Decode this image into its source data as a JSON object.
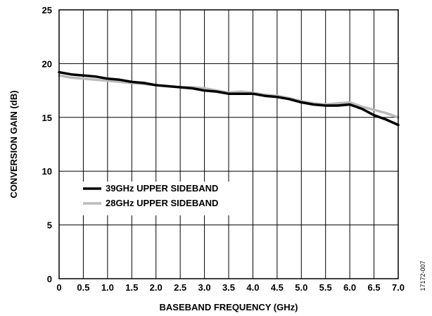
{
  "figure_id": "17172-007",
  "chart_data": {
    "type": "line",
    "title": "",
    "xlabel": "BASEBAND FREQUENCY (GHz)",
    "ylabel": "CONVERSION GAIN (dB)",
    "xlim": [
      0,
      7.0
    ],
    "ylim": [
      0,
      25
    ],
    "x_ticks": [
      0,
      0.5,
      1.0,
      1.5,
      2.0,
      2.5,
      3.0,
      3.5,
      4.0,
      4.5,
      5.0,
      5.5,
      6.0,
      6.5,
      7.0
    ],
    "x_tick_labels": [
      "0",
      "0.5",
      "1.0",
      "1.5",
      "2.0",
      "2.5",
      "3.0",
      "3.5",
      "4.0",
      "4.5",
      "5.0",
      "5.5",
      "6.0",
      "6.5",
      "7.0"
    ],
    "y_ticks": [
      0,
      5,
      10,
      15,
      20,
      25
    ],
    "y_tick_labels": [
      "0",
      "5",
      "10",
      "15",
      "20",
      "25"
    ],
    "grid": true,
    "legend_position": "center-left",
    "x": [
      0,
      0.25,
      0.5,
      0.75,
      1.0,
      1.25,
      1.5,
      1.75,
      2.0,
      2.25,
      2.5,
      2.75,
      3.0,
      3.25,
      3.5,
      3.75,
      4.0,
      4.25,
      4.5,
      4.75,
      5.0,
      5.25,
      5.5,
      5.75,
      6.0,
      6.25,
      6.5,
      6.75,
      7.0
    ],
    "series": [
      {
        "name": "39GHz UPPER SIDEBAND",
        "color": "#000000",
        "values": [
          19.2,
          19.0,
          18.9,
          18.8,
          18.6,
          18.5,
          18.3,
          18.2,
          18.0,
          17.9,
          17.8,
          17.7,
          17.5,
          17.4,
          17.2,
          17.2,
          17.2,
          17.0,
          16.9,
          16.7,
          16.4,
          16.2,
          16.1,
          16.1,
          16.2,
          15.8,
          15.2,
          14.8,
          14.3
        ]
      },
      {
        "name": "28GHz UPPER SIDEBAND",
        "color": "#bbbbbb",
        "values": [
          18.9,
          18.7,
          18.6,
          18.5,
          18.4,
          18.3,
          18.2,
          18.1,
          18.0,
          17.9,
          17.8,
          17.8,
          17.7,
          17.5,
          17.3,
          17.4,
          17.3,
          17.1,
          17.0,
          16.8,
          16.5,
          16.3,
          16.2,
          16.3,
          16.4,
          16.0,
          15.7,
          15.4,
          15.0
        ]
      }
    ]
  }
}
